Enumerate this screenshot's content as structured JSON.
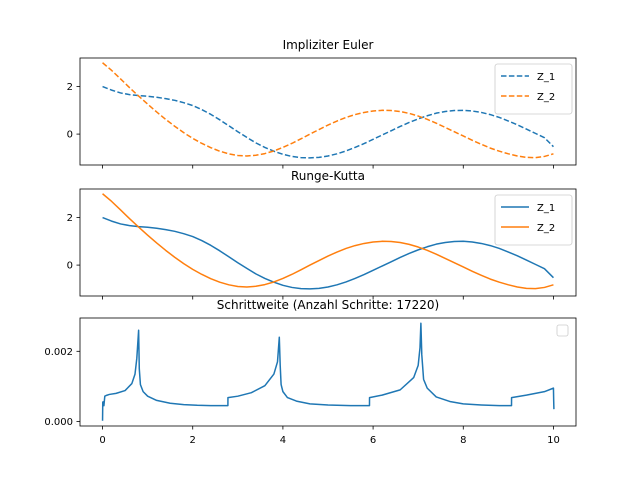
{
  "chart_data": [
    {
      "type": "line",
      "title": "Impliziter Euler",
      "xlabel": "",
      "ylabel": "",
      "xlim": [
        -0.5,
        10.5
      ],
      "ylim": [
        -1.3,
        3.2
      ],
      "yticks": [
        0,
        2
      ],
      "xticks": [
        0,
        2,
        4,
        6,
        8,
        10
      ],
      "show_xtick_labels": false,
      "legend_loc": "upper right",
      "line_style": "dashed",
      "series": [
        {
          "name": "Z_1",
          "color": "#1f77b4",
          "x": [
            0,
            0.2,
            0.4,
            0.6,
            0.8,
            1.0,
            1.2,
            1.4,
            1.6,
            1.8,
            2.0,
            2.2,
            2.4,
            2.6,
            2.8,
            3.0,
            3.2,
            3.4,
            3.6,
            3.8,
            4.0,
            4.2,
            4.4,
            4.6,
            4.8,
            5.0,
            5.2,
            5.4,
            5.6,
            5.8,
            6.0,
            6.2,
            6.4,
            6.6,
            6.8,
            7.0,
            7.2,
            7.4,
            7.6,
            7.8,
            8.0,
            8.2,
            8.4,
            8.6,
            8.8,
            9.0,
            9.2,
            9.4,
            9.6,
            9.8,
            10.0
          ],
          "y": [
            2.0,
            1.85,
            1.73,
            1.66,
            1.62,
            1.59,
            1.55,
            1.49,
            1.42,
            1.32,
            1.2,
            1.03,
            0.83,
            0.6,
            0.35,
            0.1,
            -0.14,
            -0.37,
            -0.56,
            -0.72,
            -0.85,
            -0.94,
            -0.99,
            -1.0,
            -0.98,
            -0.92,
            -0.83,
            -0.71,
            -0.56,
            -0.4,
            -0.22,
            -0.04,
            0.14,
            0.32,
            0.49,
            0.64,
            0.77,
            0.88,
            0.95,
            0.99,
            1.0,
            0.97,
            0.91,
            0.82,
            0.7,
            0.55,
            0.39,
            0.21,
            0.03,
            -0.15,
            -0.53
          ]
        },
        {
          "name": "Z_2",
          "color": "#ff7f0e",
          "x": [
            0,
            0.2,
            0.4,
            0.6,
            0.8,
            1.0,
            1.2,
            1.4,
            1.6,
            1.8,
            2.0,
            2.2,
            2.4,
            2.6,
            2.8,
            3.0,
            3.2,
            3.4,
            3.6,
            3.8,
            4.0,
            4.2,
            4.4,
            4.6,
            4.8,
            5.0,
            5.2,
            5.4,
            5.6,
            5.8,
            6.0,
            6.2,
            6.4,
            6.6,
            6.8,
            7.0,
            7.2,
            7.4,
            7.6,
            7.8,
            8.0,
            8.2,
            8.4,
            8.6,
            8.8,
            9.0,
            9.2,
            9.4,
            9.6,
            9.8,
            10.0
          ],
          "y": [
            3.0,
            2.68,
            2.32,
            1.95,
            1.6,
            1.26,
            0.93,
            0.62,
            0.33,
            0.06,
            -0.18,
            -0.39,
            -0.57,
            -0.72,
            -0.83,
            -0.9,
            -0.92,
            -0.89,
            -0.82,
            -0.71,
            -0.56,
            -0.39,
            -0.2,
            0.0,
            0.19,
            0.38,
            0.55,
            0.7,
            0.82,
            0.91,
            0.97,
            1.0,
            0.99,
            0.95,
            0.87,
            0.76,
            0.62,
            0.46,
            0.28,
            0.1,
            -0.08,
            -0.26,
            -0.43,
            -0.59,
            -0.72,
            -0.83,
            -0.92,
            -0.98,
            -0.99,
            -0.94,
            -0.83
          ]
        }
      ]
    },
    {
      "type": "line",
      "title": "Runge-Kutta",
      "xlabel": "",
      "ylabel": "",
      "xlim": [
        -0.5,
        10.5
      ],
      "ylim": [
        -1.3,
        3.2
      ],
      "yticks": [
        0,
        2
      ],
      "xticks": [
        0,
        2,
        4,
        6,
        8,
        10
      ],
      "show_xtick_labels": false,
      "legend_loc": "upper right",
      "line_style": "solid",
      "series": [
        {
          "name": "Z_1",
          "color": "#1f77b4",
          "x": [
            0,
            0.2,
            0.4,
            0.6,
            0.8,
            1.0,
            1.2,
            1.4,
            1.6,
            1.8,
            2.0,
            2.2,
            2.4,
            2.6,
            2.8,
            3.0,
            3.2,
            3.4,
            3.6,
            3.8,
            4.0,
            4.2,
            4.4,
            4.6,
            4.8,
            5.0,
            5.2,
            5.4,
            5.6,
            5.8,
            6.0,
            6.2,
            6.4,
            6.6,
            6.8,
            7.0,
            7.2,
            7.4,
            7.6,
            7.8,
            8.0,
            8.2,
            8.4,
            8.6,
            8.8,
            9.0,
            9.2,
            9.4,
            9.6,
            9.8,
            10.0
          ],
          "y": [
            2.0,
            1.85,
            1.73,
            1.66,
            1.62,
            1.59,
            1.55,
            1.49,
            1.42,
            1.32,
            1.2,
            1.03,
            0.83,
            0.6,
            0.35,
            0.1,
            -0.14,
            -0.37,
            -0.56,
            -0.72,
            -0.85,
            -0.94,
            -0.99,
            -1.0,
            -0.98,
            -0.92,
            -0.83,
            -0.71,
            -0.56,
            -0.4,
            -0.22,
            -0.04,
            0.14,
            0.32,
            0.49,
            0.64,
            0.77,
            0.88,
            0.95,
            0.99,
            1.0,
            0.97,
            0.91,
            0.82,
            0.7,
            0.55,
            0.39,
            0.21,
            0.03,
            -0.15,
            -0.53
          ]
        },
        {
          "name": "Z_2",
          "color": "#ff7f0e",
          "x": [
            0,
            0.2,
            0.4,
            0.6,
            0.8,
            1.0,
            1.2,
            1.4,
            1.6,
            1.8,
            2.0,
            2.2,
            2.4,
            2.6,
            2.8,
            3.0,
            3.2,
            3.4,
            3.6,
            3.8,
            4.0,
            4.2,
            4.4,
            4.6,
            4.8,
            5.0,
            5.2,
            5.4,
            5.6,
            5.8,
            6.0,
            6.2,
            6.4,
            6.6,
            6.8,
            7.0,
            7.2,
            7.4,
            7.6,
            7.8,
            8.0,
            8.2,
            8.4,
            8.6,
            8.8,
            9.0,
            9.2,
            9.4,
            9.6,
            9.8,
            10.0
          ],
          "y": [
            3.0,
            2.68,
            2.32,
            1.95,
            1.6,
            1.26,
            0.93,
            0.62,
            0.33,
            0.06,
            -0.18,
            -0.39,
            -0.57,
            -0.72,
            -0.83,
            -0.9,
            -0.92,
            -0.89,
            -0.82,
            -0.71,
            -0.56,
            -0.39,
            -0.2,
            0.0,
            0.19,
            0.38,
            0.55,
            0.7,
            0.82,
            0.91,
            0.97,
            1.0,
            0.99,
            0.95,
            0.87,
            0.76,
            0.62,
            0.46,
            0.28,
            0.1,
            -0.08,
            -0.26,
            -0.43,
            -0.59,
            -0.72,
            -0.83,
            -0.92,
            -0.98,
            -0.99,
            -0.94,
            -0.83
          ]
        }
      ]
    },
    {
      "type": "line",
      "title": "Schrittweite (Anzahl Schritte: 17220)",
      "xlabel": "",
      "ylabel": "",
      "xlim": [
        -0.5,
        10.5
      ],
      "ylim": [
        -0.00013,
        0.00295
      ],
      "yticks": [
        0.0,
        0.002
      ],
      "ytick_labels": [
        "0.000",
        "0.002"
      ],
      "xticks": [
        0,
        2,
        4,
        6,
        8,
        10
      ],
      "show_xtick_labels": true,
      "legend_loc": "upper right",
      "legend_empty": true,
      "line_style": "solid",
      "series": [
        {
          "name": "",
          "color": "#1f77b4",
          "x": [
            0,
            0.005,
            0.01,
            0.015,
            0.02,
            0.03,
            0.05,
            0.08,
            0.15,
            0.3,
            0.5,
            0.65,
            0.72,
            0.76,
            0.785,
            0.8,
            0.815,
            0.84,
            0.9,
            1.0,
            1.2,
            1.5,
            1.8,
            2.1,
            2.4,
            2.78,
            2.781,
            3.0,
            3.3,
            3.6,
            3.8,
            3.88,
            3.92,
            3.94,
            3.96,
            4.0,
            4.1,
            4.3,
            4.6,
            5.0,
            5.5,
            5.92,
            5.921,
            6.2,
            6.6,
            6.9,
            7.0,
            7.04,
            7.06,
            7.08,
            7.12,
            7.2,
            7.4,
            7.7,
            8.0,
            8.4,
            8.8,
            9.07,
            9.071,
            9.4,
            9.8,
            10.0,
            10.005,
            10.01
          ],
          "y": [
            2e-05,
            0.00055,
            0.0005,
            0.00056,
            0.00051,
            0.00045,
            0.00072,
            0.00074,
            0.00077,
            0.0008,
            0.00088,
            0.00108,
            0.00135,
            0.0018,
            0.0023,
            0.0026,
            0.0015,
            0.00105,
            0.00085,
            0.00072,
            0.0006,
            0.00052,
            0.00048,
            0.00046,
            0.00045,
            0.00045,
            0.00068,
            0.00072,
            0.00082,
            0.00102,
            0.00135,
            0.0017,
            0.0024,
            0.0016,
            0.00105,
            0.00085,
            0.00068,
            0.00058,
            0.0005,
            0.00047,
            0.00045,
            0.00045,
            0.00068,
            0.00075,
            0.0009,
            0.00125,
            0.0016,
            0.0021,
            0.0028,
            0.0019,
            0.0012,
            0.00095,
            0.0007,
            0.00057,
            0.0005,
            0.00047,
            0.00045,
            0.00045,
            0.00068,
            0.00075,
            0.00085,
            0.00095,
            0.0006,
            0.00035
          ]
        }
      ]
    }
  ]
}
